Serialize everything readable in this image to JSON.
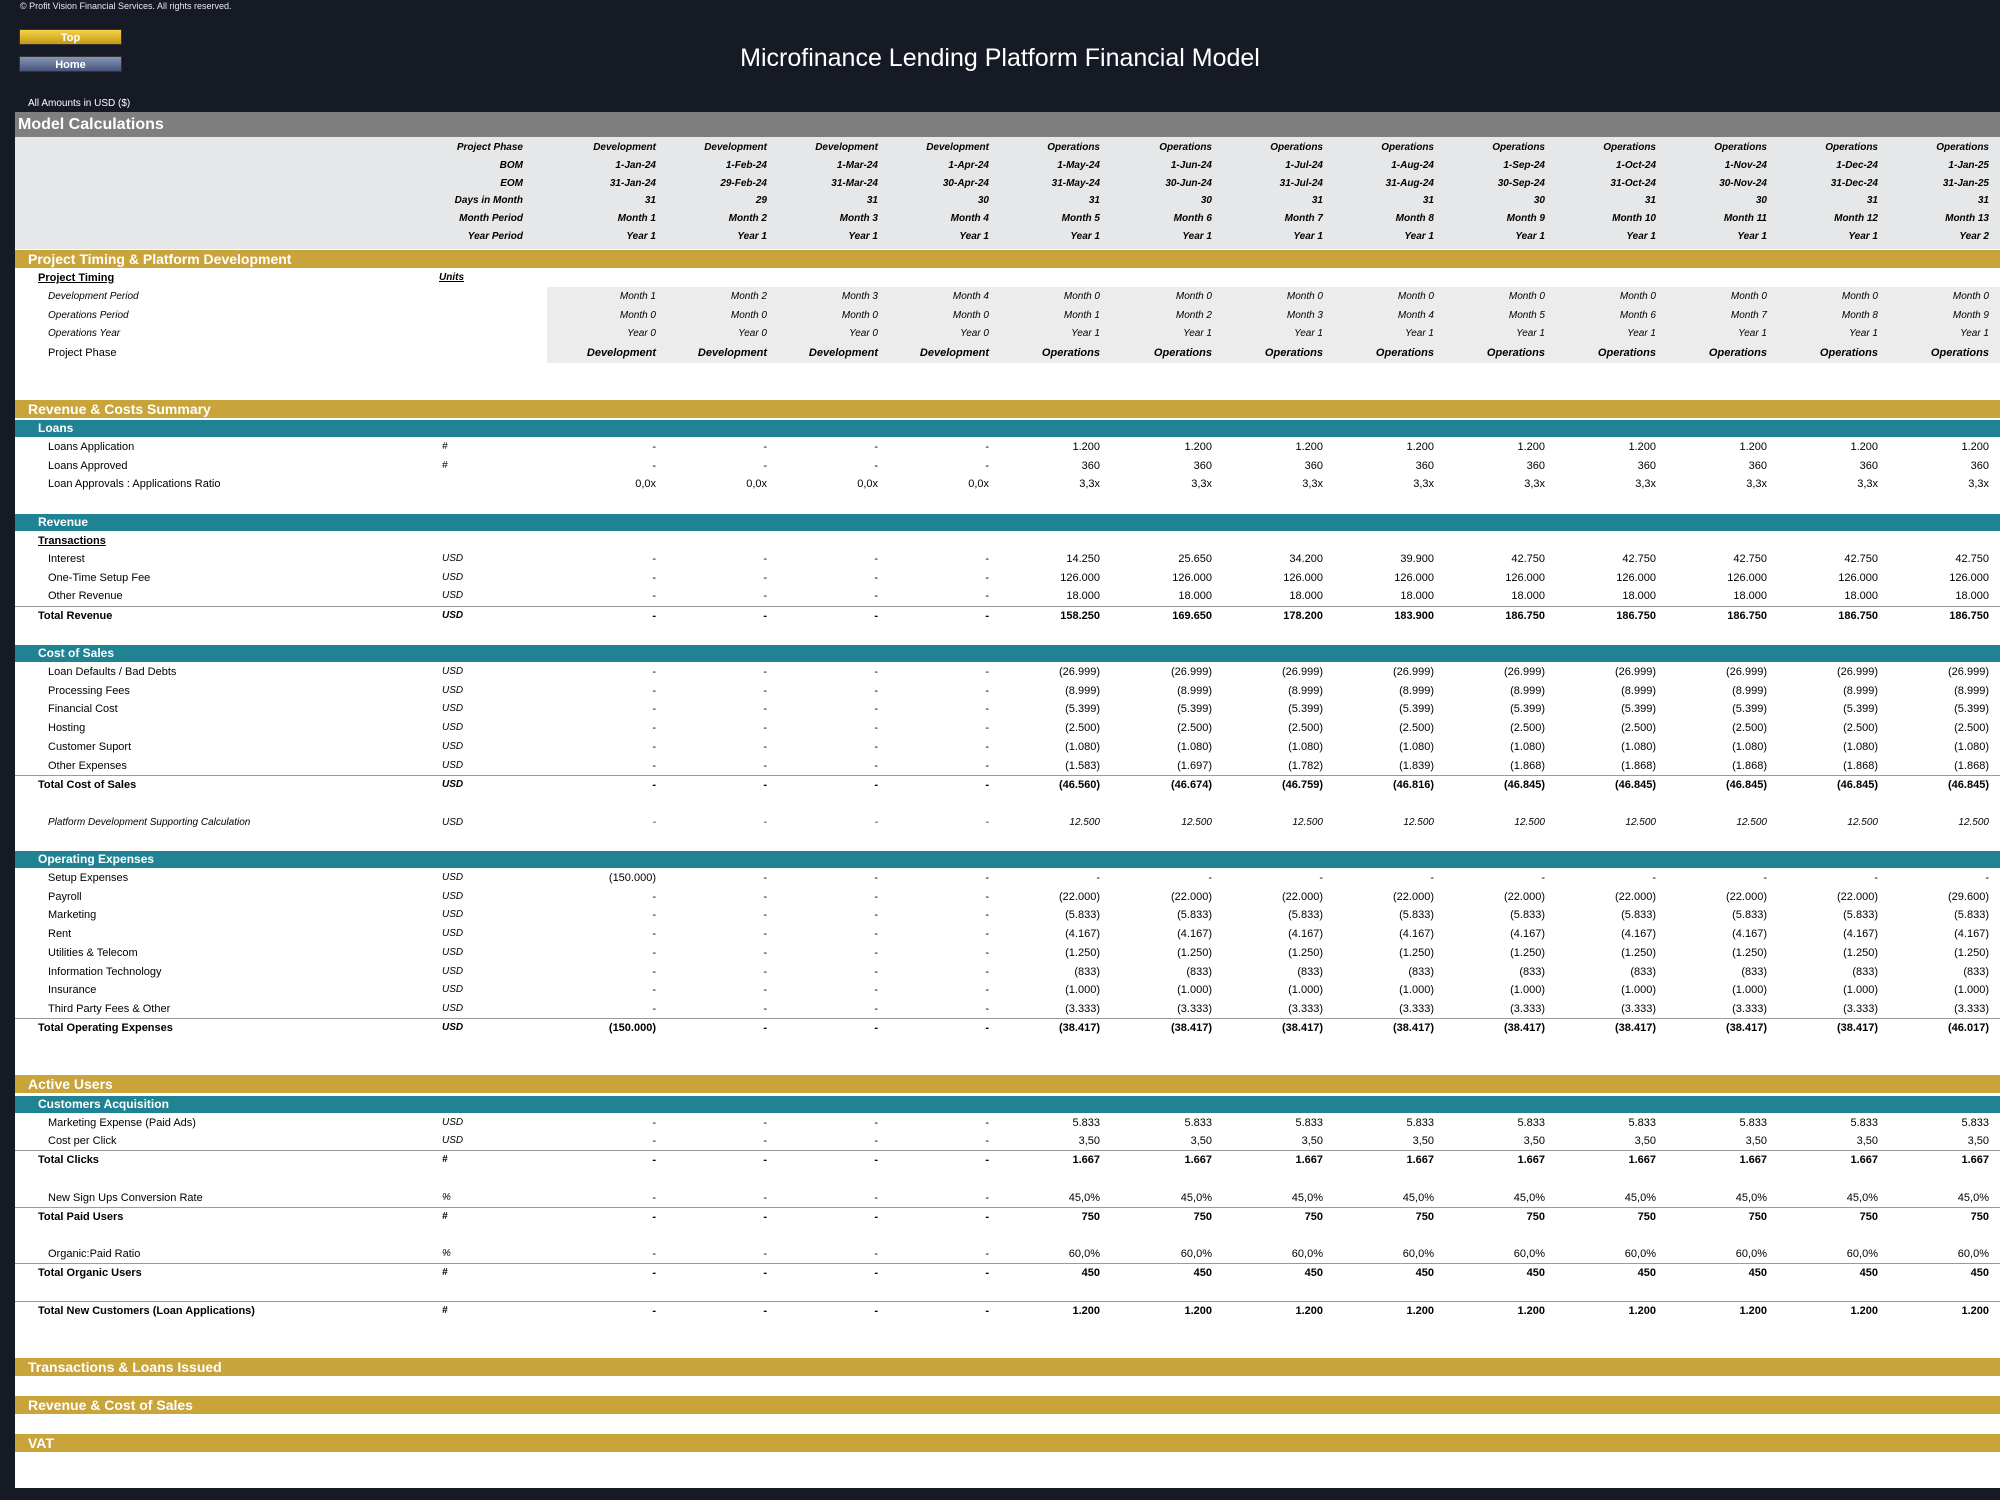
{
  "copyright": "© Profit Vision Financial Services. All rights reserved.",
  "nav": {
    "top_label": "Top",
    "home_label": "Home"
  },
  "title": "Microfinance Lending Platform Financial Model",
  "amounts_label": "All Amounts in  USD ($)",
  "sheet_title": "Model Calculations",
  "header_rows": [
    {
      "label": "Project Phase",
      "values": [
        "Development",
        "Development",
        "Development",
        "Development",
        "Operations",
        "Operations",
        "Operations",
        "Operations",
        "Operations",
        "Operations",
        "Operations",
        "Operations",
        "Operations"
      ]
    },
    {
      "label": "BOM",
      "values": [
        "1-Jan-24",
        "1-Feb-24",
        "1-Mar-24",
        "1-Apr-24",
        "1-May-24",
        "1-Jun-24",
        "1-Jul-24",
        "1-Aug-24",
        "1-Sep-24",
        "1-Oct-24",
        "1-Nov-24",
        "1-Dec-24",
        "1-Jan-25"
      ]
    },
    {
      "label": "EOM",
      "values": [
        "31-Jan-24",
        "29-Feb-24",
        "31-Mar-24",
        "30-Apr-24",
        "31-May-24",
        "30-Jun-24",
        "31-Jul-24",
        "31-Aug-24",
        "30-Sep-24",
        "31-Oct-24",
        "30-Nov-24",
        "31-Dec-24",
        "31-Jan-25"
      ]
    },
    {
      "label": "Days in Month",
      "values": [
        "31",
        "29",
        "31",
        "30",
        "31",
        "30",
        "31",
        "31",
        "30",
        "31",
        "30",
        "31",
        "31"
      ]
    },
    {
      "label": "Month Period",
      "values": [
        "Month 1",
        "Month 2",
        "Month 3",
        "Month 4",
        "Month 5",
        "Month 6",
        "Month 7",
        "Month 8",
        "Month 9",
        "Month 10",
        "Month 11",
        "Month 12",
        "Month 13"
      ]
    },
    {
      "label": "Year Period",
      "values": [
        "Year 1",
        "Year 1",
        "Year 1",
        "Year 1",
        "Year 1",
        "Year 1",
        "Year 1",
        "Year 1",
        "Year 1",
        "Year 1",
        "Year 1",
        "Year 1",
        "Year 2"
      ]
    }
  ],
  "sections": {
    "timing": "Project Timing & Platform Development",
    "revenue_costs": "Revenue & Costs Summary",
    "active_users": "Active Users",
    "transactions": "Transactions & Loans Issued",
    "rev_cos": "Revenue & Cost of Sales",
    "vat": "VAT"
  },
  "subsections": {
    "loans": "Loans",
    "revenue": "Revenue",
    "cost_of_sales": "Cost of Sales",
    "opex": "Operating Expenses",
    "cust_acq": "Customers Acquisition"
  },
  "labels": {
    "project_timing": "Project Timing",
    "units": "Units",
    "transactions": "Transactions"
  },
  "rows": [
    {
      "label": "Development Period",
      "unit": "",
      "style": "italic",
      "values": [
        "Month 1",
        "Month 2",
        "Month 3",
        "Month 4",
        "Month 0",
        "Month 0",
        "Month 0",
        "Month 0",
        "Month 0",
        "Month 0",
        "Month 0",
        "Month 0",
        "Month 0"
      ]
    },
    {
      "label": "Operations Period",
      "unit": "",
      "style": "italic",
      "values": [
        "Month 0",
        "Month 0",
        "Month 0",
        "Month 0",
        "Month 1",
        "Month 2",
        "Month 3",
        "Month 4",
        "Month 5",
        "Month 6",
        "Month 7",
        "Month 8",
        "Month 9"
      ]
    },
    {
      "label": "Operations Year",
      "unit": "",
      "style": "italic",
      "values": [
        "Year 0",
        "Year 0",
        "Year 0",
        "Year 0",
        "Year 1",
        "Year 1",
        "Year 1",
        "Year 1",
        "Year 1",
        "Year 1",
        "Year 1",
        "Year 1",
        "Year 1"
      ]
    },
    {
      "label": "Project Phase",
      "unit": "",
      "style": "bolditalic",
      "values": [
        "Development",
        "Development",
        "Development",
        "Development",
        "Operations",
        "Operations",
        "Operations",
        "Operations",
        "Operations",
        "Operations",
        "Operations",
        "Operations",
        "Operations"
      ]
    },
    {
      "label": "Loans Application",
      "unit": "#",
      "values": [
        "-",
        "-",
        "-",
        "-",
        "1.200",
        "1.200",
        "1.200",
        "1.200",
        "1.200",
        "1.200",
        "1.200",
        "1.200",
        "1.200"
      ]
    },
    {
      "label": "Loans Approved",
      "unit": "#",
      "values": [
        "-",
        "-",
        "-",
        "-",
        "360",
        "360",
        "360",
        "360",
        "360",
        "360",
        "360",
        "360",
        "360"
      ]
    },
    {
      "label": "Loan Approvals : Applications Ratio",
      "unit": "",
      "values": [
        "0,0x",
        "0,0x",
        "0,0x",
        "0,0x",
        "3,3x",
        "3,3x",
        "3,3x",
        "3,3x",
        "3,3x",
        "3,3x",
        "3,3x",
        "3,3x",
        "3,3x"
      ]
    },
    {
      "label": "Interest",
      "unit": "USD",
      "values": [
        "-",
        "-",
        "-",
        "-",
        "14.250",
        "25.650",
        "34.200",
        "39.900",
        "42.750",
        "42.750",
        "42.750",
        "42.750",
        "42.750"
      ]
    },
    {
      "label": "One-Time Setup Fee",
      "unit": "USD",
      "values": [
        "-",
        "-",
        "-",
        "-",
        "126.000",
        "126.000",
        "126.000",
        "126.000",
        "126.000",
        "126.000",
        "126.000",
        "126.000",
        "126.000"
      ]
    },
    {
      "label": "Other Revenue",
      "unit": "USD",
      "values": [
        "-",
        "-",
        "-",
        "-",
        "18.000",
        "18.000",
        "18.000",
        "18.000",
        "18.000",
        "18.000",
        "18.000",
        "18.000",
        "18.000"
      ]
    },
    {
      "label": "Total Revenue",
      "unit": "USD",
      "style": "bold",
      "values": [
        "-",
        "-",
        "-",
        "-",
        "158.250",
        "169.650",
        "178.200",
        "183.900",
        "186.750",
        "186.750",
        "186.750",
        "186.750",
        "186.750"
      ]
    },
    {
      "label": "Loan Defaults / Bad Debts",
      "unit": "USD",
      "values": [
        "-",
        "-",
        "-",
        "-",
        "(26.999)",
        "(26.999)",
        "(26.999)",
        "(26.999)",
        "(26.999)",
        "(26.999)",
        "(26.999)",
        "(26.999)",
        "(26.999)"
      ]
    },
    {
      "label": "Processing Fees",
      "unit": "USD",
      "values": [
        "-",
        "-",
        "-",
        "-",
        "(8.999)",
        "(8.999)",
        "(8.999)",
        "(8.999)",
        "(8.999)",
        "(8.999)",
        "(8.999)",
        "(8.999)",
        "(8.999)"
      ]
    },
    {
      "label": "Financial Cost",
      "unit": "USD",
      "values": [
        "-",
        "-",
        "-",
        "-",
        "(5.399)",
        "(5.399)",
        "(5.399)",
        "(5.399)",
        "(5.399)",
        "(5.399)",
        "(5.399)",
        "(5.399)",
        "(5.399)"
      ]
    },
    {
      "label": "Hosting",
      "unit": "USD",
      "values": [
        "-",
        "-",
        "-",
        "-",
        "(2.500)",
        "(2.500)",
        "(2.500)",
        "(2.500)",
        "(2.500)",
        "(2.500)",
        "(2.500)",
        "(2.500)",
        "(2.500)"
      ]
    },
    {
      "label": "Customer Suport",
      "unit": "USD",
      "values": [
        "-",
        "-",
        "-",
        "-",
        "(1.080)",
        "(1.080)",
        "(1.080)",
        "(1.080)",
        "(1.080)",
        "(1.080)",
        "(1.080)",
        "(1.080)",
        "(1.080)"
      ]
    },
    {
      "label": "Other Expenses",
      "unit": "USD",
      "values": [
        "-",
        "-",
        "-",
        "-",
        "(1.583)",
        "(1.697)",
        "(1.782)",
        "(1.839)",
        "(1.868)",
        "(1.868)",
        "(1.868)",
        "(1.868)",
        "(1.868)"
      ]
    },
    {
      "label": "Total Cost of Sales",
      "unit": "USD",
      "style": "bold",
      "values": [
        "-",
        "-",
        "-",
        "-",
        "(46.560)",
        "(46.674)",
        "(46.759)",
        "(46.816)",
        "(46.845)",
        "(46.845)",
        "(46.845)",
        "(46.845)",
        "(46.845)"
      ]
    },
    {
      "label": "Platform Development Supporting Calculation",
      "unit": "USD",
      "style": "italic",
      "values": [
        "-",
        "-",
        "-",
        "-",
        "12.500",
        "12.500",
        "12.500",
        "12.500",
        "12.500",
        "12.500",
        "12.500",
        "12.500",
        "12.500"
      ]
    },
    {
      "label": "Setup Expenses",
      "unit": "USD",
      "values": [
        "(150.000)",
        "-",
        "-",
        "-",
        "-",
        "-",
        "-",
        "-",
        "-",
        "-",
        "-",
        "-",
        "-"
      ]
    },
    {
      "label": "Payroll",
      "unit": "USD",
      "values": [
        "-",
        "-",
        "-",
        "-",
        "(22.000)",
        "(22.000)",
        "(22.000)",
        "(22.000)",
        "(22.000)",
        "(22.000)",
        "(22.000)",
        "(22.000)",
        "(29.600)"
      ]
    },
    {
      "label": "Marketing",
      "unit": "USD",
      "values": [
        "-",
        "-",
        "-",
        "-",
        "(5.833)",
        "(5.833)",
        "(5.833)",
        "(5.833)",
        "(5.833)",
        "(5.833)",
        "(5.833)",
        "(5.833)",
        "(5.833)"
      ]
    },
    {
      "label": "Rent",
      "unit": "USD",
      "values": [
        "-",
        "-",
        "-",
        "-",
        "(4.167)",
        "(4.167)",
        "(4.167)",
        "(4.167)",
        "(4.167)",
        "(4.167)",
        "(4.167)",
        "(4.167)",
        "(4.167)"
      ]
    },
    {
      "label": "Utilities & Telecom",
      "unit": "USD",
      "values": [
        "-",
        "-",
        "-",
        "-",
        "(1.250)",
        "(1.250)",
        "(1.250)",
        "(1.250)",
        "(1.250)",
        "(1.250)",
        "(1.250)",
        "(1.250)",
        "(1.250)"
      ]
    },
    {
      "label": "Information Technology",
      "unit": "USD",
      "values": [
        "-",
        "-",
        "-",
        "-",
        "(833)",
        "(833)",
        "(833)",
        "(833)",
        "(833)",
        "(833)",
        "(833)",
        "(833)",
        "(833)"
      ]
    },
    {
      "label": "Insurance",
      "unit": "USD",
      "values": [
        "-",
        "-",
        "-",
        "-",
        "(1.000)",
        "(1.000)",
        "(1.000)",
        "(1.000)",
        "(1.000)",
        "(1.000)",
        "(1.000)",
        "(1.000)",
        "(1.000)"
      ]
    },
    {
      "label": "Third Party Fees & Other",
      "unit": "USD",
      "values": [
        "-",
        "-",
        "-",
        "-",
        "(3.333)",
        "(3.333)",
        "(3.333)",
        "(3.333)",
        "(3.333)",
        "(3.333)",
        "(3.333)",
        "(3.333)",
        "(3.333)"
      ]
    },
    {
      "label": "Total Operating Expenses",
      "unit": "USD",
      "style": "bold",
      "values": [
        "(150.000)",
        "-",
        "-",
        "-",
        "(38.417)",
        "(38.417)",
        "(38.417)",
        "(38.417)",
        "(38.417)",
        "(38.417)",
        "(38.417)",
        "(38.417)",
        "(46.017)"
      ]
    },
    {
      "label": "Marketing Expense (Paid Ads)",
      "unit": "USD",
      "values": [
        "-",
        "-",
        "-",
        "-",
        "5.833",
        "5.833",
        "5.833",
        "5.833",
        "5.833",
        "5.833",
        "5.833",
        "5.833",
        "5.833"
      ]
    },
    {
      "label": "Cost per Click",
      "unit": "USD",
      "values": [
        "-",
        "-",
        "-",
        "-",
        "3,50",
        "3,50",
        "3,50",
        "3,50",
        "3,50",
        "3,50",
        "3,50",
        "3,50",
        "3,50"
      ]
    },
    {
      "label": "Total Clicks",
      "unit": "#",
      "style": "bold",
      "values": [
        "-",
        "-",
        "-",
        "-",
        "1.667",
        "1.667",
        "1.667",
        "1.667",
        "1.667",
        "1.667",
        "1.667",
        "1.667",
        "1.667"
      ]
    },
    {
      "label": "New Sign Ups Conversion Rate",
      "unit": "%",
      "values": [
        "-",
        "-",
        "-",
        "-",
        "45,0%",
        "45,0%",
        "45,0%",
        "45,0%",
        "45,0%",
        "45,0%",
        "45,0%",
        "45,0%",
        "45,0%"
      ]
    },
    {
      "label": "Total Paid Users",
      "unit": "#",
      "style": "bold",
      "values": [
        "-",
        "-",
        "-",
        "-",
        "750",
        "750",
        "750",
        "750",
        "750",
        "750",
        "750",
        "750",
        "750"
      ]
    },
    {
      "label": "Organic:Paid Ratio",
      "unit": "%",
      "values": [
        "-",
        "-",
        "-",
        "-",
        "60,0%",
        "60,0%",
        "60,0%",
        "60,0%",
        "60,0%",
        "60,0%",
        "60,0%",
        "60,0%",
        "60,0%"
      ]
    },
    {
      "label": "Total Organic Users",
      "unit": "#",
      "style": "bold",
      "values": [
        "-",
        "-",
        "-",
        "-",
        "450",
        "450",
        "450",
        "450",
        "450",
        "450",
        "450",
        "450",
        "450"
      ]
    },
    {
      "label": "Total New Customers (Loan Applications)",
      "unit": "#",
      "style": "bold",
      "values": [
        "-",
        "-",
        "-",
        "-",
        "1.200",
        "1.200",
        "1.200",
        "1.200",
        "1.200",
        "1.200",
        "1.200",
        "1.200",
        "1.200"
      ]
    }
  ]
}
